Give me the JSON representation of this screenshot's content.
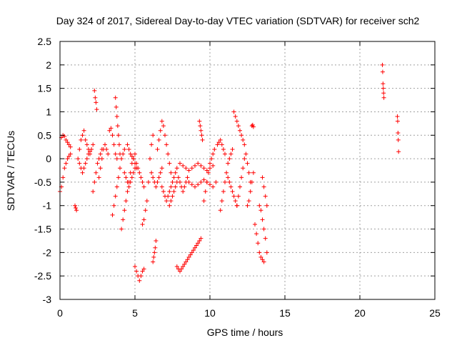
{
  "chart_data": {
    "type": "scatter",
    "title": "Day 324 of 2017, Sidereal Day-to-day VTEC variation (SDTVAR) for receiver sch2",
    "xlabel": "GPS time / hours",
    "ylabel": "SDTVAR / TECUs",
    "xlim": [
      0,
      25
    ],
    "ylim": [
      -3,
      2.5
    ],
    "x_ticks": [
      0,
      5,
      10,
      15,
      20,
      25
    ],
    "x_tick_labels": [
      "0",
      "5",
      "10",
      "15",
      "20",
      "25"
    ],
    "y_ticks": [
      -3,
      -2.5,
      -2,
      -1.5,
      -1,
      -0.5,
      0,
      0.5,
      1,
      1.5,
      2,
      2.5
    ],
    "y_tick_labels": [
      "-3",
      "-2.5",
      "-2",
      "-1.5",
      "-1",
      "-0.5",
      "0",
      "0.5",
      "1",
      "1.5",
      "2",
      "2.5"
    ],
    "grid": true,
    "marker": "+",
    "color": "#ff0000",
    "series": [
      {
        "name": "SDTVAR",
        "tracks": [
          {
            "x": [
              0.0,
              0.1,
              0.2,
              0.3,
              0.4,
              0.5,
              0.6,
              0.7
            ],
            "y": [
              -0.7,
              -0.6,
              -0.4,
              -0.2,
              -0.1,
              0.0,
              0.05,
              0.1
            ]
          },
          {
            "x": [
              0.1,
              0.2,
              0.3,
              0.4,
              0.5,
              0.6,
              0.7
            ],
            "y": [
              0.45,
              0.5,
              0.48,
              0.4,
              0.35,
              0.3,
              0.25
            ]
          },
          {
            "x": [
              1.0,
              1.05,
              1.1
            ],
            "y": [
              -1.0,
              -1.05,
              -1.1
            ]
          },
          {
            "x": [
              1.2,
              1.3,
              1.4,
              1.5,
              1.6,
              1.7,
              1.8,
              1.9,
              2.0,
              2.1,
              2.2
            ],
            "y": [
              0.0,
              0.2,
              0.4,
              0.5,
              0.6,
              0.4,
              0.3,
              0.2,
              0.1,
              0.2,
              0.3
            ]
          },
          {
            "x": [
              1.3,
              1.4,
              1.5,
              1.6,
              1.7,
              1.8,
              1.9,
              2.0
            ],
            "y": [
              -0.1,
              -0.2,
              -0.3,
              -0.2,
              -0.1,
              0.0,
              0.1,
              0.15
            ]
          },
          {
            "x": [
              2.3,
              2.35,
              2.4,
              2.45
            ],
            "y": [
              1.45,
              1.3,
              1.2,
              1.05
            ]
          },
          {
            "x": [
              2.2,
              2.3,
              2.4,
              2.5,
              2.6,
              2.7,
              2.8
            ],
            "y": [
              -0.7,
              -0.5,
              -0.3,
              -0.1,
              0.0,
              0.1,
              0.2
            ]
          },
          {
            "x": [
              2.6,
              2.7,
              2.8,
              2.9,
              3.0,
              3.1,
              3.2
            ],
            "y": [
              -0.4,
              -0.2,
              0.0,
              0.2,
              0.3,
              0.2,
              0.1
            ]
          },
          {
            "x": [
              3.3,
              3.4,
              3.5,
              3.6,
              3.7,
              3.8
            ],
            "y": [
              0.6,
              0.65,
              0.5,
              0.3,
              0.1,
              0.0
            ]
          },
          {
            "x": [
              3.7,
              3.75,
              3.8,
              3.85,
              3.9,
              3.95,
              4.0
            ],
            "y": [
              1.3,
              1.1,
              0.9,
              0.7,
              0.5,
              0.3,
              0.1
            ]
          },
          {
            "x": [
              3.5,
              3.6,
              3.7,
              3.8,
              3.9,
              4.0,
              4.1,
              4.2,
              4.3
            ],
            "y": [
              -1.2,
              -1.0,
              -0.8,
              -0.6,
              -0.4,
              -0.2,
              0.0,
              0.1,
              0.2
            ]
          },
          {
            "x": [
              4.1,
              4.2,
              4.3,
              4.4,
              4.5,
              4.6,
              4.7,
              4.8,
              4.9,
              5.0
            ],
            "y": [
              -1.5,
              -1.3,
              -1.1,
              -0.9,
              -0.7,
              -0.5,
              -0.3,
              -0.1,
              0.0,
              0.1
            ]
          },
          {
            "x": [
              4.3,
              4.4,
              4.5,
              4.6,
              4.7,
              4.8,
              4.9,
              5.0,
              5.1,
              5.2,
              5.3,
              5.4,
              5.5,
              5.6
            ],
            "y": [
              -0.3,
              -0.4,
              -0.5,
              -0.6,
              -0.5,
              -0.4,
              -0.3,
              -0.2,
              -0.1,
              -0.2,
              -0.3,
              -0.4,
              -0.5,
              -0.6
            ]
          },
          {
            "x": [
              4.5,
              4.6,
              4.7,
              4.8,
              4.9,
              5.0,
              5.1
            ],
            "y": [
              0.3,
              0.2,
              0.1,
              0.05,
              0.0,
              -0.1,
              -0.2
            ]
          },
          {
            "x": [
              5.0,
              5.1,
              5.2,
              5.3,
              5.4,
              5.5,
              5.6
            ],
            "y": [
              -2.3,
              -2.4,
              -2.5,
              -2.6,
              -2.5,
              -2.4,
              -2.35
            ]
          },
          {
            "x": [
              5.5,
              5.6,
              5.7,
              5.8,
              5.9,
              6.0,
              6.1,
              6.2
            ],
            "y": [
              -1.4,
              -1.3,
              -1.1,
              -0.9,
              -0.5,
              0.0,
              0.3,
              0.5
            ]
          },
          {
            "x": [
              6.1,
              6.2,
              6.3,
              6.4,
              6.5,
              6.6,
              6.7,
              6.8
            ],
            "y": [
              -0.3,
              -0.4,
              -0.5,
              -0.6,
              -0.5,
              -0.4,
              -0.3,
              -0.2
            ]
          },
          {
            "x": [
              6.2,
              6.25,
              6.3,
              6.35,
              6.4
            ],
            "y": [
              -2.2,
              -2.1,
              -2.0,
              -1.9,
              -1.75
            ]
          },
          {
            "x": [
              6.5,
              6.6,
              6.7,
              6.8,
              6.9,
              7.0,
              7.1,
              7.2,
              7.3,
              7.4
            ],
            "y": [
              0.2,
              0.4,
              0.6,
              0.8,
              0.7,
              0.5,
              0.3,
              0.1,
              -0.1,
              -0.3
            ]
          },
          {
            "x": [
              6.8,
              6.9,
              7.0,
              7.1,
              7.2,
              7.3,
              7.4,
              7.5,
              7.6,
              7.7,
              7.8
            ],
            "y": [
              -0.6,
              -0.7,
              -0.8,
              -0.9,
              -0.8,
              -0.7,
              -0.6,
              -0.5,
              -0.4,
              -0.3,
              -0.2
            ]
          },
          {
            "x": [
              7.3,
              7.4,
              7.5,
              7.6,
              7.7,
              7.8,
              7.9,
              8.0,
              8.1,
              8.2,
              8.3,
              8.4,
              8.5
            ],
            "y": [
              -1.0,
              -0.9,
              -0.8,
              -0.7,
              -0.6,
              -0.5,
              -0.4,
              -0.5,
              -0.6,
              -0.7,
              -0.6,
              -0.5,
              -0.4
            ]
          },
          {
            "x": [
              7.8,
              7.9,
              8.0,
              8.1,
              8.2,
              8.3,
              8.4,
              8.5,
              8.6,
              8.7,
              8.8,
              8.9,
              9.0,
              9.1,
              9.2,
              9.3,
              9.4
            ],
            "y": [
              -2.3,
              -2.35,
              -2.4,
              -2.35,
              -2.3,
              -2.25,
              -2.2,
              -2.15,
              -2.1,
              -2.05,
              -2.0,
              -1.95,
              -1.9,
              -1.85,
              -1.8,
              -1.75,
              -1.7
            ]
          },
          {
            "x": [
              8.0,
              8.2,
              8.4,
              8.6,
              8.8,
              9.0,
              9.2,
              9.4,
              9.6,
              9.8,
              10.0,
              10.2
            ],
            "y": [
              -0.1,
              -0.15,
              -0.2,
              -0.25,
              -0.2,
              -0.15,
              -0.1,
              -0.15,
              -0.2,
              -0.25,
              -0.2,
              -0.15
            ]
          },
          {
            "x": [
              8.6,
              8.8,
              9.0,
              9.2,
              9.4,
              9.6,
              9.8,
              10.0,
              10.2,
              10.4
            ],
            "y": [
              -0.5,
              -0.55,
              -0.6,
              -0.55,
              -0.5,
              -0.45,
              -0.5,
              -0.55,
              -0.6,
              -0.5
            ]
          },
          {
            "x": [
              9.3,
              9.35,
              9.4,
              9.45,
              9.5
            ],
            "y": [
              0.8,
              0.7,
              0.6,
              0.5,
              0.4
            ]
          },
          {
            "x": [
              9.6,
              9.7,
              9.8,
              9.9,
              10.0,
              10.1,
              10.2,
              10.3
            ],
            "y": [
              -0.9,
              -0.7,
              -0.5,
              -0.3,
              -0.1,
              0.0,
              0.1,
              0.2
            ]
          },
          {
            "x": [
              10.5,
              10.6,
              10.7,
              10.8,
              10.9,
              11.0
            ],
            "y": [
              0.3,
              0.35,
              0.4,
              0.3,
              0.2,
              0.1
            ]
          },
          {
            "x": [
              10.7,
              10.8,
              10.9,
              11.0,
              11.1,
              11.2,
              11.3,
              11.4,
              11.5
            ],
            "y": [
              -1.1,
              -0.9,
              -0.7,
              -0.5,
              -0.3,
              -0.1,
              0.0,
              0.1,
              0.2
            ]
          },
          {
            "x": [
              11.2,
              11.3,
              11.4,
              11.5,
              11.6,
              11.7,
              11.8
            ],
            "y": [
              -0.4,
              -0.5,
              -0.6,
              -0.7,
              -0.8,
              -0.9,
              -1.0
            ]
          },
          {
            "x": [
              11.6,
              11.7,
              11.8,
              11.9,
              12.0,
              12.1,
              12.2
            ],
            "y": [
              1.0,
              0.9,
              0.8,
              0.7,
              0.6,
              0.5,
              0.4
            ]
          },
          {
            "x": [
              11.8,
              11.9,
              12.0,
              12.1,
              12.2,
              12.3
            ],
            "y": [
              -1.0,
              -0.8,
              -0.6,
              -0.4,
              -0.2,
              0.0
            ]
          },
          {
            "x": [
              12.3,
              12.4,
              12.5,
              12.6,
              12.7
            ],
            "y": [
              0.3,
              0.1,
              -0.1,
              -0.3,
              -0.5
            ]
          },
          {
            "x": [
              12.8,
              12.85,
              12.9
            ],
            "y": [
              0.7,
              0.72,
              0.68
            ]
          },
          {
            "x": [
              12.5,
              12.6,
              12.7,
              12.8,
              12.9
            ],
            "y": [
              -1.0,
              -0.9,
              -0.7,
              -0.5,
              -0.3
            ]
          },
          {
            "x": [
              13.0,
              13.1,
              13.2,
              13.3,
              13.4,
              13.5,
              13.6
            ],
            "y": [
              -1.4,
              -1.6,
              -1.8,
              -2.0,
              -2.1,
              -2.15,
              -2.2
            ]
          },
          {
            "x": [
              13.3,
              13.4,
              13.5,
              13.6,
              13.7,
              13.8
            ],
            "y": [
              -1.0,
              -1.1,
              -1.3,
              -1.5,
              -1.7,
              -2.0
            ]
          },
          {
            "x": [
              13.5,
              13.6,
              13.7,
              13.8
            ],
            "y": [
              -0.4,
              -0.6,
              -0.8,
              -1.0
            ]
          },
          {
            "x": [
              21.5,
              21.52,
              21.54,
              21.56,
              21.58,
              21.6
            ],
            "y": [
              2.0,
              1.85,
              1.6,
              1.5,
              1.4,
              1.3
            ]
          },
          {
            "x": [
              22.5,
              22.52,
              22.54,
              22.56,
              22.58
            ],
            "y": [
              0.9,
              0.8,
              0.55,
              0.4,
              0.15
            ]
          }
        ]
      }
    ]
  }
}
